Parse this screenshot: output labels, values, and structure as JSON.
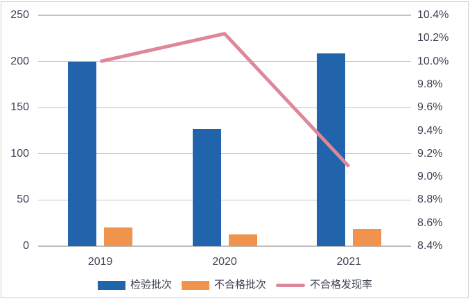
{
  "chart_data": {
    "type": "combo-bar-line",
    "title": "",
    "categories": [
      "2019",
      "2020",
      "2021"
    ],
    "series": [
      {
        "name": "检验批次",
        "type": "bar",
        "axis": "left",
        "color": "#2164AC",
        "values": [
          200,
          127,
          209
        ]
      },
      {
        "name": "不合格批次",
        "type": "bar",
        "axis": "left",
        "color": "#F0944D",
        "values": [
          20,
          13,
          19
        ]
      },
      {
        "name": "不合格发现率",
        "type": "line",
        "axis": "right",
        "color": "#DE8799",
        "values": [
          10.0,
          10.24,
          9.09
        ],
        "unit": "%"
      }
    ],
    "left_axis": {
      "min": 0,
      "max": 250,
      "step": 50,
      "ticks": [
        "0",
        "50",
        "100",
        "150",
        "200",
        "250"
      ]
    },
    "right_axis": {
      "min": 8.4,
      "max": 10.4,
      "step": 0.2,
      "ticks": [
        "8.4%",
        "8.6%",
        "8.8%",
        "9.0%",
        "9.2%",
        "9.4%",
        "9.6%",
        "9.8%",
        "10.0%",
        "10.2%",
        "10.4%"
      ]
    },
    "legend": [
      "检验批次",
      "不合格批次",
      "不合格发现率"
    ],
    "legend_position": "bottom",
    "grid": "horizontal",
    "colors": {
      "background": "#FFFFFF",
      "frame_border": "#CACACA",
      "gridline": "#C3C3C3",
      "axis_line": "#BDBDBD",
      "tick_label": "#404459"
    }
  }
}
